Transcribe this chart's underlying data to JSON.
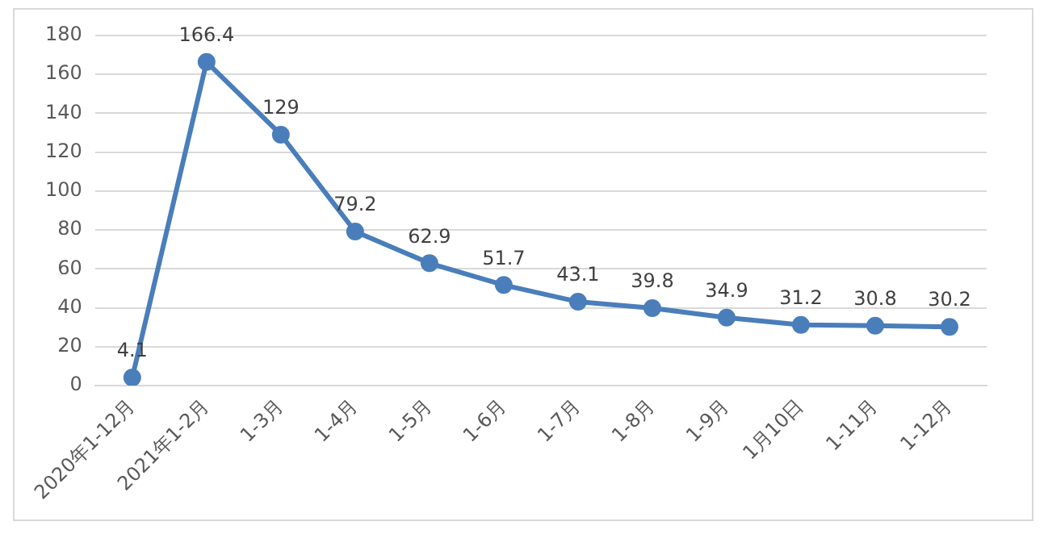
{
  "chart_data": {
    "type": "line",
    "categories": [
      "2020年1-12月",
      "2021年1-2月",
      "1-3月",
      "1-4月",
      "1-5月",
      "1-6月",
      "1-7月",
      "1-8月",
      "1-9月",
      "1月10日",
      "1-11月",
      "1-12月"
    ],
    "series": [
      {
        "color": "#4a7ebb",
        "values": [
          4.1,
          166.4,
          129,
          79.2,
          62.9,
          51.7,
          43.1,
          39.8,
          34.9,
          31.2,
          30.8,
          30.2
        ]
      }
    ],
    "ylim": [
      0,
      180
    ],
    "yticks": [
      0,
      20,
      40,
      60,
      80,
      100,
      120,
      140,
      160,
      180
    ],
    "grid": "y",
    "legend": false,
    "marker": "circle",
    "line_style": "solid",
    "data_labels": true
  }
}
